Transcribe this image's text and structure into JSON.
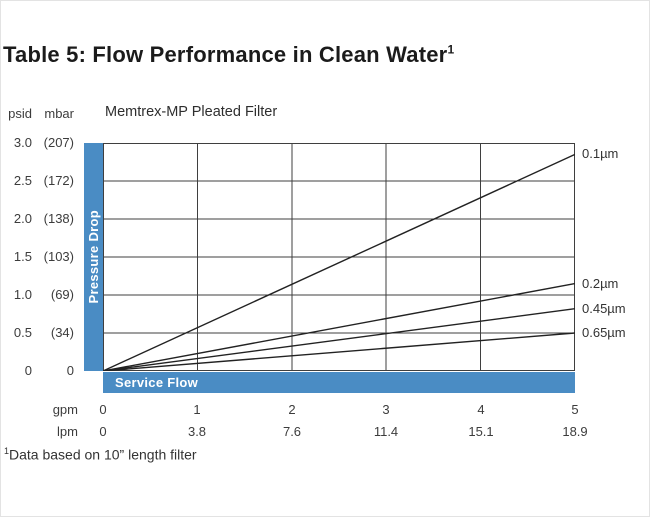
{
  "title": {
    "text": "Table 5: Flow Performance in Clean Water",
    "superscript": "1"
  },
  "axes": {
    "y": {
      "unit_psid": "psid",
      "unit_mbar": "mbar",
      "rows": [
        {
          "psid": "3.0",
          "mbar": "(207)"
        },
        {
          "psid": "2.5",
          "mbar": "(172)"
        },
        {
          "psid": "2.0",
          "mbar": "(138)"
        },
        {
          "psid": "1.5",
          "mbar": "(103)"
        },
        {
          "psid": "1.0",
          "mbar": "(69)"
        },
        {
          "psid": "0.5",
          "mbar": "(34)"
        },
        {
          "psid": "0",
          "mbar": "0"
        }
      ]
    },
    "x": {
      "rows": [
        {
          "unit": "gpm",
          "values": [
            "0",
            "1",
            "2",
            "3",
            "4",
            "5"
          ]
        },
        {
          "unit": "lpm",
          "values": [
            "0",
            "3.8",
            "7.6",
            "11.4",
            "15.1",
            "18.9"
          ]
        }
      ]
    }
  },
  "chart_data": {
    "type": "line",
    "title": "Memtrex-MP Pleated Filter",
    "xlabel": "Service Flow",
    "ylabel": "Pressure Drop",
    "x_units": [
      "gpm",
      "lpm"
    ],
    "y_units": [
      "psid",
      "mbar"
    ],
    "xlim": [
      0,
      5
    ],
    "ylim": [
      0,
      3
    ],
    "grid": true,
    "legend_position": "right-edge labels",
    "x_ticks_gpm": [
      0,
      1,
      2,
      3,
      4,
      5
    ],
    "x_ticks_lpm": [
      0,
      3.8,
      7.6,
      11.4,
      15.1,
      18.9
    ],
    "y_ticks_psid": [
      0,
      0.5,
      1.0,
      1.5,
      2.0,
      2.5,
      3.0
    ],
    "y_ticks_mbar": [
      0,
      34,
      69,
      103,
      138,
      172,
      207
    ],
    "series": [
      {
        "name": "0.1µm",
        "x": [
          0,
          5
        ],
        "y": [
          0,
          2.85
        ]
      },
      {
        "name": "0.2µm",
        "x": [
          0,
          5
        ],
        "y": [
          0,
          1.15
        ]
      },
      {
        "name": "0.45µm",
        "x": [
          0,
          5
        ],
        "y": [
          0,
          0.82
        ]
      },
      {
        "name": "0.65µm",
        "x": [
          0,
          5
        ],
        "y": [
          0,
          0.5
        ]
      }
    ]
  },
  "footnote": {
    "superscript": "1",
    "text": "Data based on 10” length filter"
  },
  "colors": {
    "accent_blue": "#4a8cc4",
    "grid": "#3f3f3f",
    "line": "#222222"
  }
}
